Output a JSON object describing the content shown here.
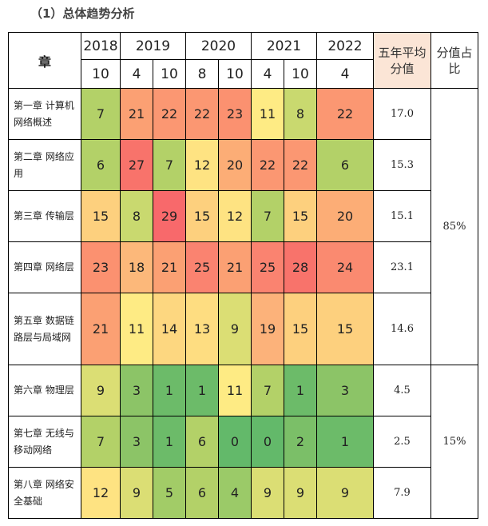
{
  "heading": "（1）总体趋势分析",
  "table": {
    "chapter_header": "章",
    "avg_header": "五年平均分值",
    "share_header": "分值占比",
    "years": [
      "2018",
      "2019",
      "2020",
      "2021",
      "2022"
    ],
    "months": [
      "10",
      "4",
      "10",
      "8",
      "10",
      "4",
      "10",
      "4"
    ],
    "rows": [
      {
        "chapter": "第一章 计算机网络概述",
        "values": [
          "7",
          "21",
          "22",
          "22",
          "23",
          "11",
          "8",
          "22"
        ],
        "colors": [
          "#b3d168",
          "#fba073",
          "#fb9772",
          "#fb9772",
          "#fb9170",
          "#feeb84",
          "#c9d96f",
          "#fb9772"
        ],
        "avg": "17.0"
      },
      {
        "chapter": "第二章 网络应用",
        "values": [
          "6",
          "27",
          "7",
          "12",
          "20",
          "22",
          "22",
          "6"
        ],
        "colors": [
          "#b3d168",
          "#f8736b",
          "#b3d168",
          "#fee382",
          "#fcad76",
          "#fb9772",
          "#fb9772",
          "#b3d168"
        ],
        "avg": "15.3"
      },
      {
        "chapter": "第三章 传输层",
        "values": [
          "15",
          "8",
          "29",
          "15",
          "12",
          "7",
          "15",
          "20"
        ],
        "colors": [
          "#fdd07e",
          "#c9d96f",
          "#f8696b",
          "#fdd07e",
          "#fee382",
          "#b3d168",
          "#fdd07e",
          "#fcad76"
        ],
        "avg": "15.1"
      },
      {
        "chapter": "第四章 网络层",
        "values": [
          "23",
          "18",
          "21",
          "25",
          "21",
          "25",
          "28",
          "24"
        ],
        "colors": [
          "#fb9170",
          "#fcb87a",
          "#fba073",
          "#fa8370",
          "#fba073",
          "#fa8370",
          "#f8736b",
          "#fa8a70"
        ],
        "avg": "23.1"
      },
      {
        "chapter": "第五章 数据链路层与局域网",
        "values": [
          "21",
          "11",
          "14",
          "13",
          "9",
          "19",
          "15",
          "15"
        ],
        "colors": [
          "#fba073",
          "#feeb84",
          "#fdd780",
          "#fedd81",
          "#dbde74",
          "#fcb27a",
          "#fdd07e",
          "#fdd07e"
        ],
        "avg": "14.6"
      },
      {
        "chapter": "第六章 物理层",
        "values": [
          "9",
          "3",
          "1",
          "1",
          "11",
          "7",
          "1",
          "3"
        ],
        "colors": [
          "#dbde74",
          "#8cc467",
          "#6cbb69",
          "#6cbb69",
          "#feeb84",
          "#b3d168",
          "#6cbb69",
          "#8cc467"
        ],
        "avg": "4.5"
      },
      {
        "chapter": "第七章 无线与移动网络",
        "values": [
          "7",
          "3",
          "1",
          "6",
          "0",
          "0",
          "2",
          "1"
        ],
        "colors": [
          "#b3d168",
          "#8cc467",
          "#6cbb69",
          "#b3d168",
          "#63b96a",
          "#63b96a",
          "#7bbf68",
          "#6cbb69"
        ],
        "avg": "2.5"
      },
      {
        "chapter": "第八章 网络安全基础",
        "values": [
          "12",
          "9",
          "5",
          "6",
          "4",
          "9",
          "9",
          "9"
        ],
        "colors": [
          "#fee382",
          "#dbde74",
          "#a2cc67",
          "#b3d168",
          "#9bca68",
          "#dbde74",
          "#dbde74",
          "#dbde74"
        ],
        "avg": "7.9"
      }
    ],
    "shares": [
      {
        "label": "85%",
        "rows": 5
      },
      {
        "label": "15%",
        "rows": 3
      }
    ]
  }
}
